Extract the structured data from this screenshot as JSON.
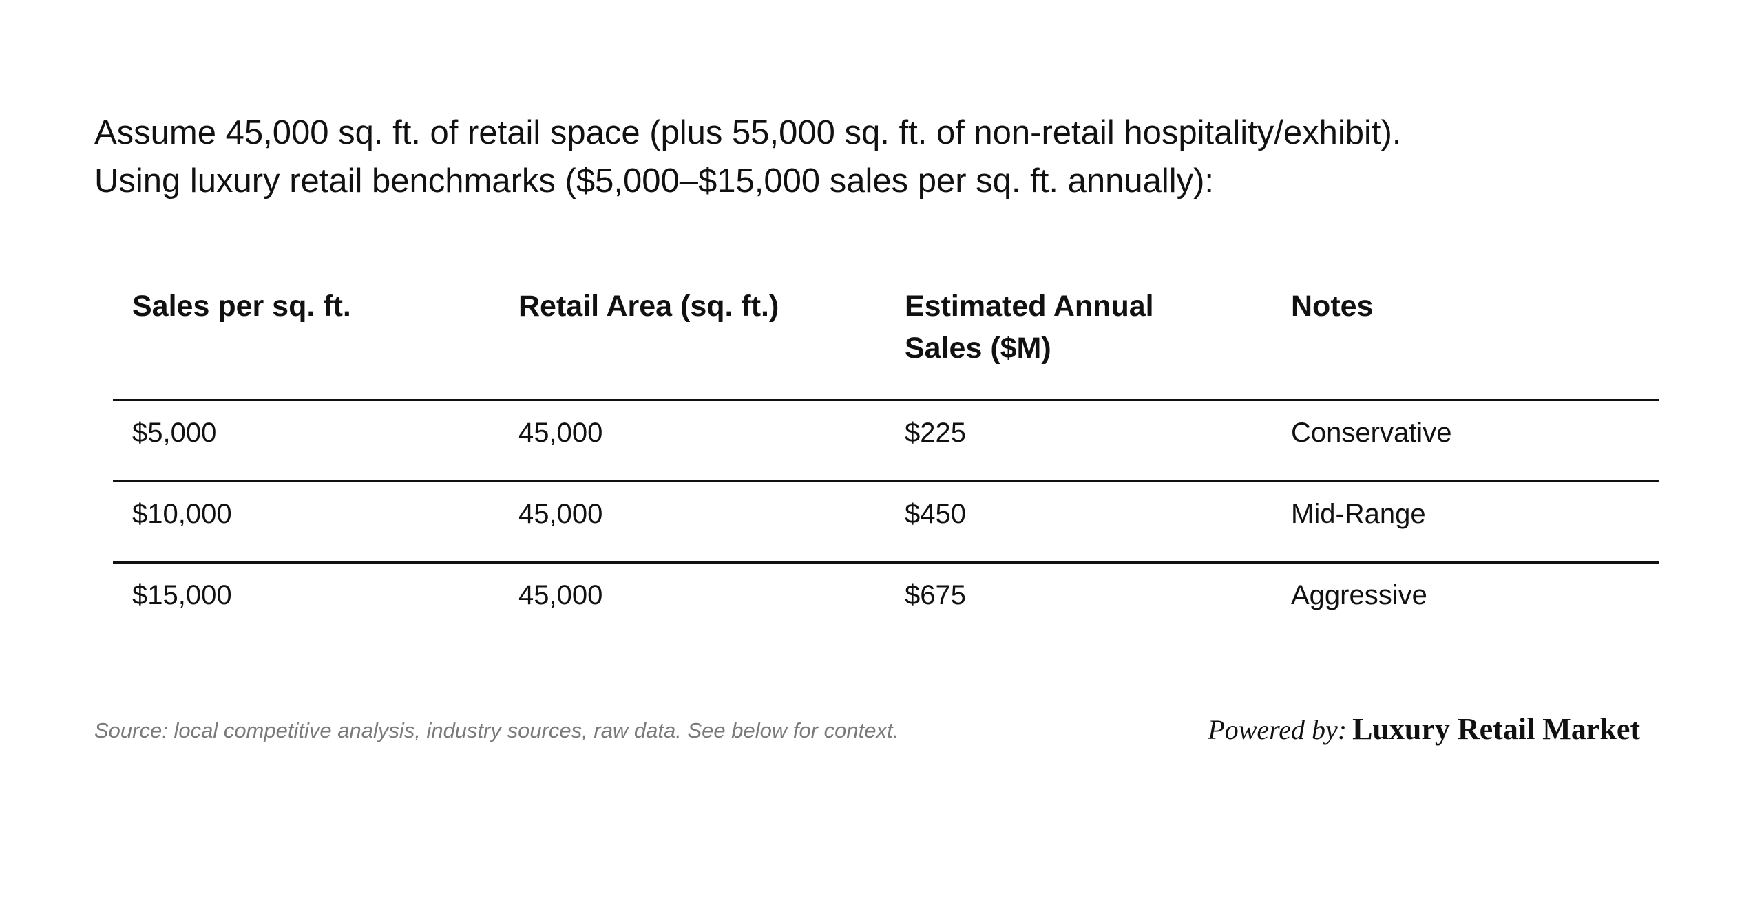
{
  "intro": {
    "line1": "Assume 45,000 sq. ft. of retail space (plus 55,000 sq. ft. of non-retail hospitality/exhibit).",
    "line2": "Using luxury retail benchmarks ($5,000–$15,000 sales per sq. ft. annually):"
  },
  "table": {
    "headers": [
      {
        "line1": "Sales per sq. ft.",
        "line2": ""
      },
      {
        "line1": "Retail Area (sq. ft.)",
        "line2": ""
      },
      {
        "line1": "Estimated Annual",
        "line2": "Sales ($M)"
      },
      {
        "line1": "Notes",
        "line2": ""
      }
    ],
    "rows": [
      [
        "$5,000",
        "45,000",
        "$225",
        "Conservative"
      ],
      [
        "$10,000",
        "45,000",
        "$450",
        "Mid-Range"
      ],
      [
        "$15,000",
        "45,000",
        "$675",
        "Aggressive"
      ]
    ]
  },
  "footer": {
    "source": "Source: local competitive analysis, industry sources, raw data. See below for context.",
    "powered_label": "Powered by:",
    "brand": "Luxury Retail Market"
  }
}
